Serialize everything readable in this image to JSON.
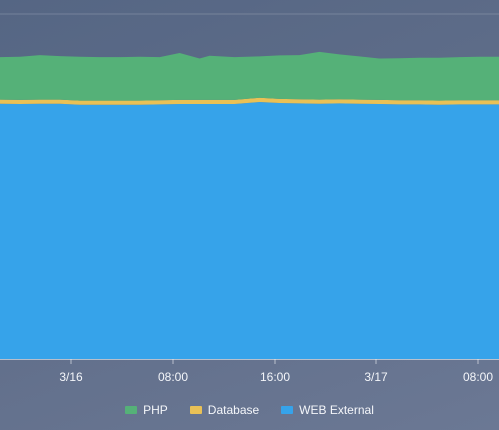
{
  "chart_data": {
    "type": "area",
    "stacked": true,
    "x": [
      0,
      0.04,
      0.08,
      0.12,
      0.16,
      0.2,
      0.24,
      0.28,
      0.32,
      0.36,
      0.4,
      0.42,
      0.47,
      0.52,
      0.56,
      0.6,
      0.64,
      0.68,
      0.72,
      0.76,
      0.8,
      0.84,
      0.88,
      0.92,
      0.96,
      1.0
    ],
    "x_ticks": [
      "3/16",
      "08:00",
      "16:00",
      "3/17",
      "08:00"
    ],
    "ylim": [
      0,
      100
    ],
    "grid": true,
    "legend_position": "bottom-center",
    "series": [
      {
        "name": "WEB External",
        "color": "#36a3ea",
        "values": [
          74.0,
          73.9,
          74.0,
          74.0,
          73.7,
          73.7,
          73.7,
          73.7,
          73.8,
          73.9,
          73.9,
          73.9,
          73.9,
          74.5,
          74.2,
          74.1,
          74.0,
          74.1,
          74.0,
          73.9,
          73.8,
          73.8,
          73.7,
          73.8,
          73.8,
          73.8
        ]
      },
      {
        "name": "Database",
        "color": "#e9c156",
        "values": [
          1.2,
          1.2,
          1.2,
          1.2,
          1.2,
          1.2,
          1.2,
          1.2,
          1.2,
          1.2,
          1.2,
          1.2,
          1.2,
          1.2,
          1.2,
          1.2,
          1.2,
          1.2,
          1.2,
          1.2,
          1.2,
          1.2,
          1.2,
          1.2,
          1.2,
          1.2
        ]
      },
      {
        "name": "PHP",
        "color": "#55b178",
        "values": [
          12.3,
          12.5,
          12.9,
          12.6,
          12.7,
          12.6,
          12.6,
          12.7,
          12.5,
          13.6,
          12.0,
          12.8,
          12.4,
          12.0,
          12.6,
          12.8,
          13.8,
          13.0,
          12.5,
          12.0,
          12.2,
          12.3,
          12.4,
          12.5,
          12.6,
          12.6
        ]
      }
    ],
    "legend": [
      "PHP",
      "Database",
      "WEB External"
    ]
  }
}
